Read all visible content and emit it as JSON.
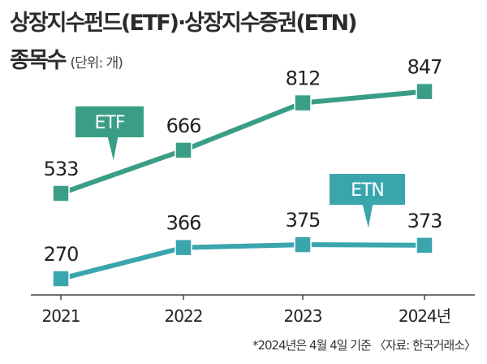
{
  "header": {
    "title": "상장지수펀드(ETF)·상장지수증권(ETN)",
    "subtitle": "종목수",
    "unit": "(단위: 개)"
  },
  "footnote": "*2024년은 4월 4일 기준 〈자료: 한국거래소〉",
  "colors": {
    "etf": "#3a9e87",
    "etn": "#3aa5ad",
    "axis": "#444444",
    "text": "#222222"
  },
  "chart_data": {
    "type": "line",
    "categories": [
      "2021",
      "2022",
      "2023",
      "2024년"
    ],
    "series": [
      {
        "name": "ETF",
        "values": [
          533,
          666,
          812,
          847
        ]
      },
      {
        "name": "ETN",
        "values": [
          270,
          366,
          375,
          373
        ]
      }
    ],
    "data_labels": true,
    "grid": false
  }
}
